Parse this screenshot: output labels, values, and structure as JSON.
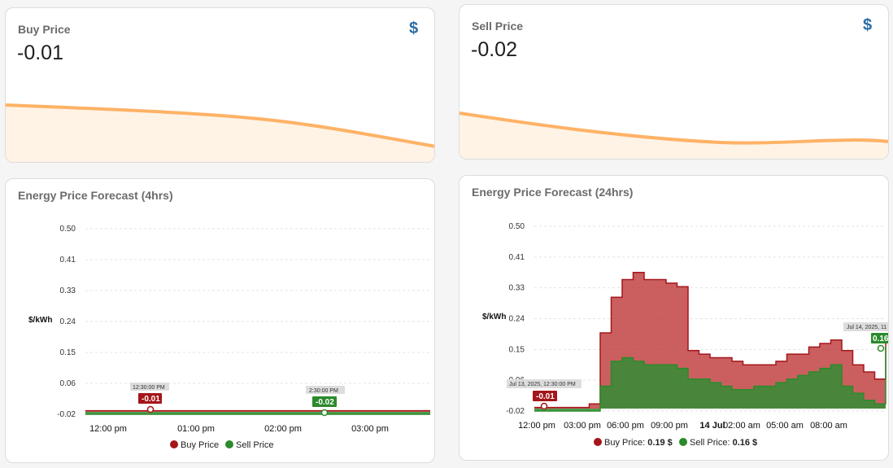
{
  "buy_card": {
    "title": "Buy Price",
    "value": "-0.01",
    "icon": "dollar-icon"
  },
  "sell_card": {
    "title": "Sell Price",
    "value": "-0.02",
    "icon": "dollar-icon"
  },
  "colors": {
    "spark_line": "#ffb266",
    "spark_fill": "#fff3e6",
    "buy": "#a4161a",
    "sell": "#2b8a2b",
    "icon": "#2b6ea8"
  },
  "forecast4": {
    "title": "Energy Price Forecast (4hrs)",
    "ylabel": "$/kWh",
    "legend": {
      "buy": "Buy Price",
      "sell": "Sell Price"
    },
    "anno_buy": {
      "time": "12:30:00 PM",
      "value": "-0.01"
    },
    "anno_sell": {
      "time": "2:30:00 PM",
      "value": "-0.02"
    }
  },
  "forecast24": {
    "title": "Energy Price Forecast (24hrs)",
    "ylabel": "$/kWh",
    "legend": {
      "buy": "Buy Price:",
      "buy_value": "0.19 $",
      "sell": "Sell Price:",
      "sell_value": "0.16 $"
    },
    "anno_start": {
      "time": "Jul 13, 2025, 12:30:00 PM",
      "value": "-0.01"
    },
    "anno_end": {
      "time": "Jul 14, 2025, 11",
      "value": "0.16"
    }
  },
  "chart_data": [
    {
      "type": "area",
      "ylim": [
        -0.02,
        0.5
      ],
      "yticks": [
        "0.50",
        "0.41",
        "0.33",
        "0.24",
        "0.15",
        "0.06",
        "-0.02"
      ],
      "xticks": [
        "12:00 pm",
        "01:00 pm",
        "02:00 pm",
        "03:00 pm"
      ],
      "x": [
        "11:30",
        "12:00",
        "12:30",
        "13:00",
        "13:30",
        "14:00",
        "14:30",
        "15:00",
        "15:30"
      ],
      "series": [
        {
          "name": "Buy Price",
          "values": [
            -0.01,
            -0.01,
            -0.01,
            -0.01,
            -0.01,
            -0.01,
            -0.01,
            -0.01,
            -0.01
          ]
        },
        {
          "name": "Sell Price",
          "values": [
            -0.02,
            -0.02,
            -0.02,
            -0.02,
            -0.02,
            -0.02,
            -0.02,
            -0.02,
            -0.02
          ]
        }
      ]
    },
    {
      "type": "area",
      "ylim": [
        -0.02,
        0.5
      ],
      "yticks": [
        "0.50",
        "0.41",
        "0.33",
        "0.24",
        "0.15",
        "0.06",
        "-0.02"
      ],
      "xticks": [
        "12:00 pm",
        "03:00 pm",
        "06:00 pm",
        "09:00 pm",
        "14 Jul",
        "02:00 am",
        "05:00 am",
        "08:00 am"
      ],
      "series": [
        {
          "name": "Buy Price",
          "values": [
            -0.01,
            -0.01,
            -0.01,
            -0.01,
            -0.01,
            0.0,
            0.2,
            0.3,
            0.35,
            0.37,
            0.35,
            0.35,
            0.34,
            0.33,
            0.15,
            0.14,
            0.13,
            0.13,
            0.12,
            0.11,
            0.11,
            0.11,
            0.12,
            0.14,
            0.14,
            0.16,
            0.17,
            0.18,
            0.15,
            0.11,
            0.09,
            0.07,
            0.19
          ]
        },
        {
          "name": "Sell Price",
          "values": [
            -0.02,
            -0.02,
            -0.02,
            -0.02,
            -0.02,
            -0.02,
            0.05,
            0.12,
            0.13,
            0.12,
            0.11,
            0.11,
            0.11,
            0.1,
            0.07,
            0.07,
            0.06,
            0.05,
            0.04,
            0.04,
            0.05,
            0.05,
            0.06,
            0.07,
            0.08,
            0.09,
            0.1,
            0.11,
            0.05,
            0.03,
            0.01,
            0.0,
            0.16
          ]
        }
      ]
    }
  ]
}
